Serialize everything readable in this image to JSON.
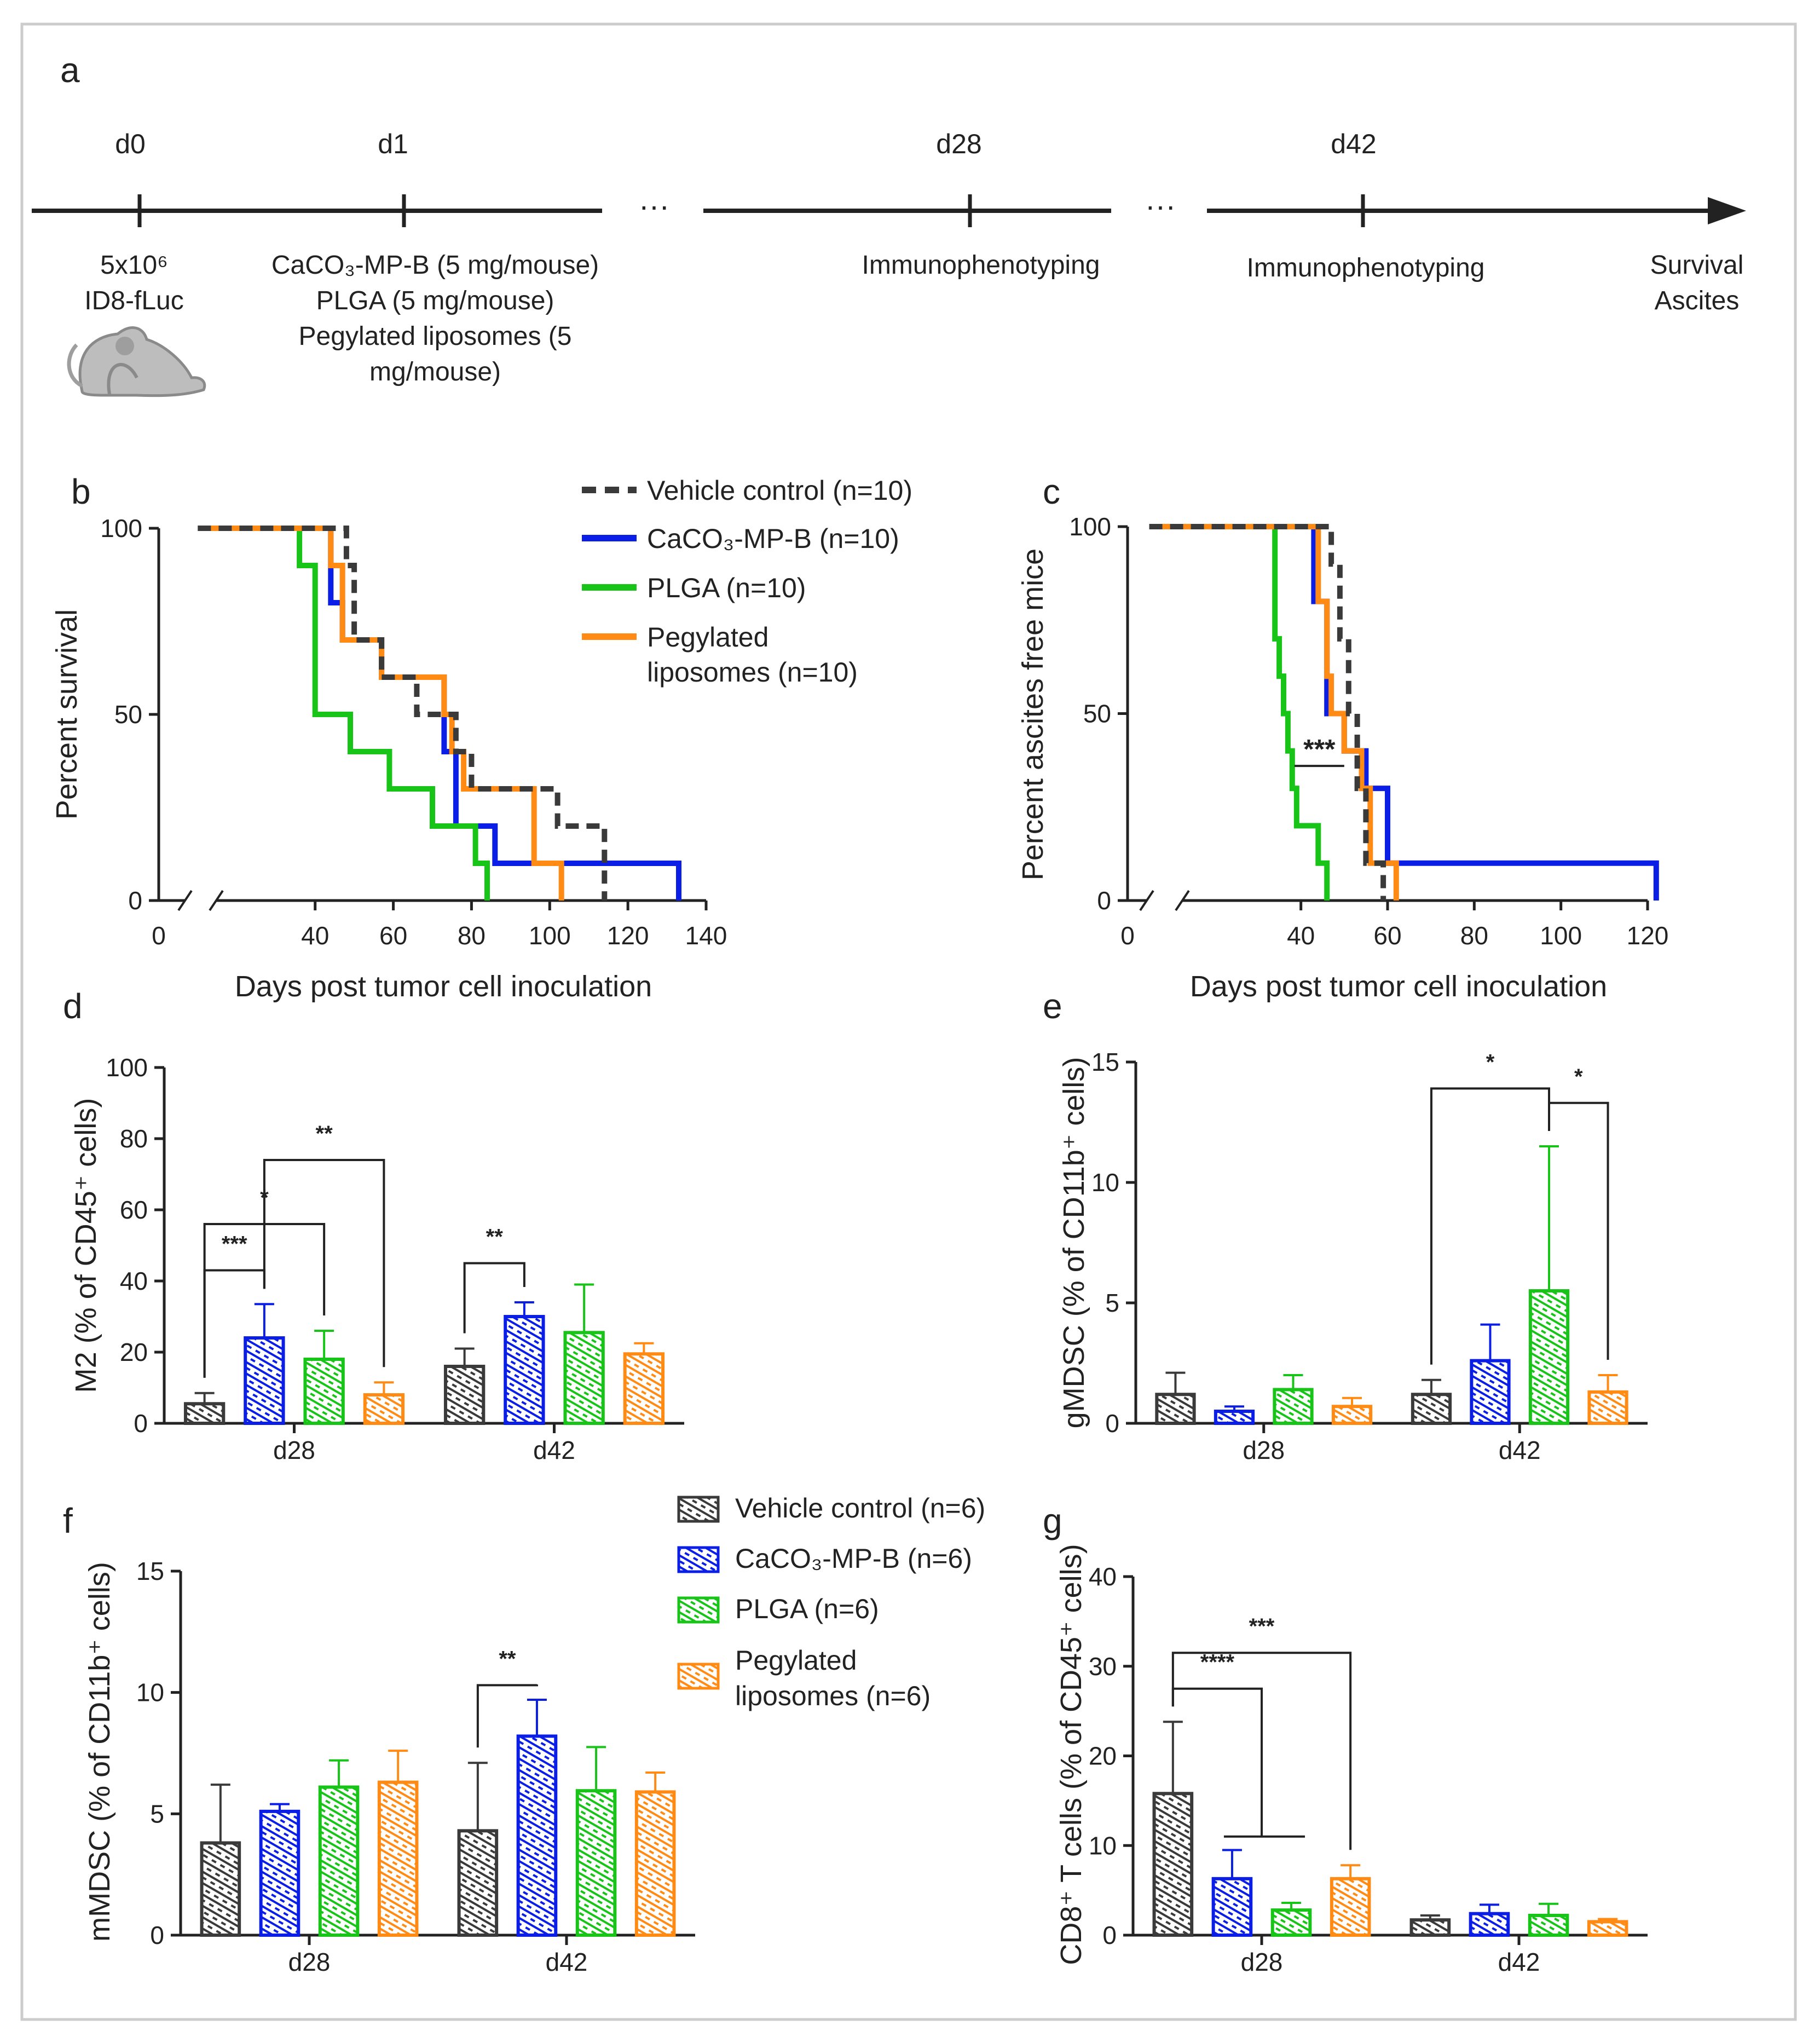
{
  "colors": {
    "vehicle": "#3a3a3a",
    "caco3": "#0a1ee6",
    "plga": "#19c419",
    "peg": "#ff8a14",
    "axis": "#222222",
    "frame": "#c8c8c8"
  },
  "panel_a": {
    "letter": "a",
    "events": [
      {
        "day": "d0",
        "desc": [
          "5x10⁶",
          "ID8-fLuc"
        ]
      },
      {
        "day": "d1",
        "desc": [
          "CaCO₃-MP-B (5 mg/mouse)",
          "PLGA (5 mg/mouse)",
          "Pegylated liposomes (5",
          "mg/mouse)"
        ]
      },
      {
        "day": "d28",
        "desc": [
          "Immunophenotyping"
        ]
      },
      {
        "day": "d42",
        "desc": [
          "Immunophenotyping"
        ]
      }
    ],
    "ellipsis": "···",
    "end_label": [
      "Survival",
      "Ascites"
    ]
  },
  "survival_legend": [
    {
      "label": "Vehicle control (n=10)",
      "series": "vehicle"
    },
    {
      "label": "CaCO₃-MP-B (n=10)",
      "series": "caco3"
    },
    {
      "label": "PLGA (n=10)",
      "series": "plga"
    },
    {
      "label": "Pegylated",
      "label2": "liposomes (n=10)",
      "series": "peg"
    }
  ],
  "bar_legend": [
    {
      "label": "Vehicle control (n=6)",
      "series": "vehicle"
    },
    {
      "label": "CaCO₃-MP-B (n=6)",
      "series": "caco3"
    },
    {
      "label": "PLGA (n=6)",
      "series": "plga"
    },
    {
      "label": "Pegylated",
      "label2": "liposomes (n=6)",
      "series": "peg"
    }
  ],
  "chart_data": [
    {
      "id": "b",
      "letter": "b",
      "type": "line",
      "xlabel": "Days post tumor cell inoculation",
      "ylabel": "Percent survival",
      "xlim": [
        0,
        140
      ],
      "ylim": [
        0,
        100
      ],
      "xticks": [
        0,
        40,
        60,
        80,
        100,
        120,
        140
      ],
      "yticks": [
        0,
        50,
        100
      ],
      "series": [
        {
          "name": "Vehicle control (n=10)",
          "key": "vehicle",
          "dashed": true,
          "points": [
            [
              10,
              100
            ],
            [
              48,
              100
            ],
            [
              48,
              90
            ],
            [
              50,
              90
            ],
            [
              50,
              70
            ],
            [
              57,
              70
            ],
            [
              57,
              60
            ],
            [
              66,
              60
            ],
            [
              66,
              50
            ],
            [
              76,
              50
            ],
            [
              76,
              40
            ],
            [
              80,
              40
            ],
            [
              80,
              30
            ],
            [
              102,
              30
            ],
            [
              102,
              20
            ],
            [
              114,
              20
            ],
            [
              114,
              0
            ]
          ]
        },
        {
          "name": "CaCO₃-MP-B (n=10)",
          "key": "caco3",
          "dashed": false,
          "points": [
            [
              10,
              100
            ],
            [
              44,
              100
            ],
            [
              44,
              80
            ],
            [
              47,
              80
            ],
            [
              47,
              70
            ],
            [
              57,
              70
            ],
            [
              57,
              60
            ],
            [
              73,
              60
            ],
            [
              73,
              40
            ],
            [
              76,
              40
            ],
            [
              76,
              20
            ],
            [
              86,
              20
            ],
            [
              86,
              10
            ],
            [
              133,
              10
            ],
            [
              133,
              0
            ]
          ]
        },
        {
          "name": "PLGA (n=10)",
          "key": "plga",
          "dashed": false,
          "points": [
            [
              10,
              100
            ],
            [
              36,
              100
            ],
            [
              36,
              90
            ],
            [
              40,
              90
            ],
            [
              40,
              50
            ],
            [
              49,
              50
            ],
            [
              49,
              40
            ],
            [
              59,
              40
            ],
            [
              59,
              30
            ],
            [
              70,
              30
            ],
            [
              70,
              20
            ],
            [
              81,
              20
            ],
            [
              81,
              10
            ],
            [
              84,
              10
            ],
            [
              84,
              0
            ]
          ]
        },
        {
          "name": "Pegylated liposomes (n=10)",
          "key": "peg",
          "dashed": false,
          "points": [
            [
              10,
              100
            ],
            [
              44,
              100
            ],
            [
              44,
              90
            ],
            [
              47,
              90
            ],
            [
              47,
              70
            ],
            [
              57,
              70
            ],
            [
              57,
              60
            ],
            [
              73,
              60
            ],
            [
              73,
              50
            ],
            [
              75,
              50
            ],
            [
              75,
              40
            ],
            [
              78,
              40
            ],
            [
              78,
              30
            ],
            [
              96,
              30
            ],
            [
              96,
              10
            ],
            [
              103,
              10
            ],
            [
              103,
              0
            ]
          ]
        }
      ]
    },
    {
      "id": "c",
      "letter": "c",
      "type": "line",
      "xlabel": "Days post tumor cell inoculation",
      "ylabel": "Percent ascites free mice",
      "xlim": [
        0,
        120
      ],
      "ylim": [
        0,
        100
      ],
      "xticks": [
        0,
        40,
        60,
        80,
        100,
        120
      ],
      "yticks": [
        0,
        50,
        100
      ],
      "annotation": "***",
      "series": [
        {
          "name": "Vehicle control (n=10)",
          "key": "vehicle",
          "dashed": true,
          "points": [
            [
              5,
              100
            ],
            [
              47,
              100
            ],
            [
              47,
              90
            ],
            [
              49,
              90
            ],
            [
              49,
              70
            ],
            [
              51,
              70
            ],
            [
              51,
              50
            ],
            [
              53,
              50
            ],
            [
              53,
              30
            ],
            [
              55,
              30
            ],
            [
              55,
              10
            ],
            [
              59,
              10
            ],
            [
              59,
              0
            ]
          ]
        },
        {
          "name": "CaCO₃-MP-B (n=10)",
          "key": "caco3",
          "dashed": false,
          "points": [
            [
              5,
              100
            ],
            [
              43,
              100
            ],
            [
              43,
              80
            ],
            [
              46,
              80
            ],
            [
              46,
              50
            ],
            [
              50,
              50
            ],
            [
              50,
              40
            ],
            [
              55,
              40
            ],
            [
              55,
              30
            ],
            [
              60,
              30
            ],
            [
              60,
              10
            ],
            [
              122,
              10
            ],
            [
              122,
              0
            ]
          ]
        },
        {
          "name": "PLGA (n=10)",
          "key": "plga",
          "dashed": false,
          "points": [
            [
              5,
              100
            ],
            [
              34,
              100
            ],
            [
              34,
              70
            ],
            [
              35,
              70
            ],
            [
              35,
              60
            ],
            [
              36,
              60
            ],
            [
              36,
              50
            ],
            [
              37,
              50
            ],
            [
              37,
              40
            ],
            [
              38,
              40
            ],
            [
              38,
              30
            ],
            [
              39,
              30
            ],
            [
              39,
              20
            ],
            [
              44,
              20
            ],
            [
              44,
              10
            ],
            [
              46,
              10
            ],
            [
              46,
              0
            ]
          ]
        },
        {
          "name": "Pegylated liposomes (n=10)",
          "key": "peg",
          "dashed": false,
          "points": [
            [
              5,
              100
            ],
            [
              44,
              100
            ],
            [
              44,
              80
            ],
            [
              46,
              80
            ],
            [
              46,
              60
            ],
            [
              47,
              60
            ],
            [
              47,
              50
            ],
            [
              50,
              50
            ],
            [
              50,
              40
            ],
            [
              54,
              40
            ],
            [
              54,
              30
            ],
            [
              56,
              30
            ],
            [
              56,
              10
            ],
            [
              62,
              10
            ],
            [
              62,
              0
            ]
          ]
        }
      ]
    },
    {
      "id": "d",
      "letter": "d",
      "type": "bar",
      "ylabel": "M2 (% of CD45⁺ cells)",
      "ylim": [
        0,
        100
      ],
      "yticks": [
        0,
        20,
        40,
        60,
        80,
        100
      ],
      "categories": [
        "d28",
        "d42"
      ],
      "series": [
        {
          "name": "Vehicle control",
          "key": "vehicle",
          "values": [
            5.5,
            16
          ],
          "errors": [
            3,
            5
          ]
        },
        {
          "name": "CaCO₃-MP-B",
          "key": "caco3",
          "values": [
            24,
            30
          ],
          "errors": [
            9.5,
            4
          ]
        },
        {
          "name": "PLGA",
          "key": "plga",
          "values": [
            18,
            25.5
          ],
          "errors": [
            8,
            13.5
          ]
        },
        {
          "name": "Pegylated liposomes",
          "key": "peg",
          "values": [
            8,
            19.5
          ],
          "errors": [
            3.5,
            3
          ]
        }
      ],
      "significance": [
        {
          "g": 0,
          "a": 0,
          "b": 1,
          "y": 43,
          "label": "***"
        },
        {
          "g": 0,
          "a": 0,
          "b": 2,
          "y": 56,
          "label": "*"
        },
        {
          "g": 0,
          "a": 1,
          "b": 3,
          "y": 74,
          "label": "**"
        },
        {
          "g": 1,
          "a": 0,
          "b": 1,
          "y": 45,
          "label": "**"
        }
      ]
    },
    {
      "id": "e",
      "letter": "e",
      "type": "bar",
      "ylabel": "gMDSC (% of CD11b⁺ cells)",
      "ylim": [
        0,
        15
      ],
      "yticks": [
        0,
        5,
        10,
        15
      ],
      "categories": [
        "d28",
        "d42"
      ],
      "series": [
        {
          "name": "Vehicle control",
          "key": "vehicle",
          "values": [
            1.2,
            1.2
          ],
          "errors": [
            0.9,
            0.6
          ]
        },
        {
          "name": "CaCO₃-MP-B",
          "key": "caco3",
          "values": [
            0.5,
            2.6
          ],
          "errors": [
            0.2,
            1.5
          ]
        },
        {
          "name": "PLGA",
          "key": "plga",
          "values": [
            1.4,
            5.5
          ],
          "errors": [
            0.6,
            6
          ]
        },
        {
          "name": "Pegylated liposomes",
          "key": "peg",
          "values": [
            0.7,
            1.3
          ],
          "errors": [
            0.35,
            0.7
          ]
        }
      ],
      "significance": [
        {
          "g": 1,
          "a": 0,
          "b": 2,
          "y": 13.9,
          "label": "*"
        },
        {
          "g": 1,
          "a": 2,
          "b": 3,
          "y": 13.3,
          "label": "*"
        }
      ]
    },
    {
      "id": "f",
      "letter": "f",
      "type": "bar",
      "ylabel": "mMDSC (% of CD11b⁺ cells)",
      "ylim": [
        0,
        15
      ],
      "yticks": [
        0,
        5,
        10,
        15
      ],
      "categories": [
        "d28",
        "d42"
      ],
      "series": [
        {
          "name": "Vehicle control",
          "key": "vehicle",
          "values": [
            3.8,
            4.3
          ],
          "errors": [
            2.4,
            2.8
          ]
        },
        {
          "name": "CaCO₃-MP-B",
          "key": "caco3",
          "values": [
            5.1,
            8.2
          ],
          "errors": [
            0.3,
            1.5
          ]
        },
        {
          "name": "PLGA",
          "key": "plga",
          "values": [
            6.1,
            5.95
          ],
          "errors": [
            1.1,
            1.8
          ]
        },
        {
          "name": "Pegylated liposomes",
          "key": "peg",
          "values": [
            6.3,
            5.9
          ],
          "errors": [
            1.3,
            0.8
          ]
        }
      ],
      "significance": [
        {
          "g": 1,
          "a": 0,
          "b": 1,
          "y": 10.3,
          "label": "**"
        }
      ]
    },
    {
      "id": "g",
      "letter": "g",
      "type": "bar",
      "ylabel": "CD8⁺ T cells (% of CD45⁺ cells)",
      "ylim": [
        0,
        40
      ],
      "yticks": [
        0,
        10,
        20,
        30,
        40
      ],
      "categories": [
        "d28",
        "d42"
      ],
      "series": [
        {
          "name": "Vehicle control",
          "key": "vehicle",
          "values": [
            15.8,
            1.7
          ],
          "errors": [
            8,
            0.5
          ]
        },
        {
          "name": "CaCO₃-MP-B",
          "key": "caco3",
          "values": [
            6.3,
            2.4
          ],
          "errors": [
            3.2,
            1
          ]
        },
        {
          "name": "PLGA",
          "key": "plga",
          "values": [
            2.8,
            2.2
          ],
          "errors": [
            0.8,
            1.3
          ]
        },
        {
          "name": "Pegylated liposomes",
          "key": "peg",
          "values": [
            6.3,
            1.5
          ],
          "errors": [
            1.5,
            0.3
          ]
        }
      ],
      "significance": [
        {
          "g": 0,
          "a": 0,
          "b": 3,
          "y": 31.5,
          "label": "***"
        },
        {
          "g": 0,
          "a": 0,
          "bracket": [
            1,
            2
          ],
          "y": 27.5,
          "label": "****"
        }
      ]
    }
  ]
}
